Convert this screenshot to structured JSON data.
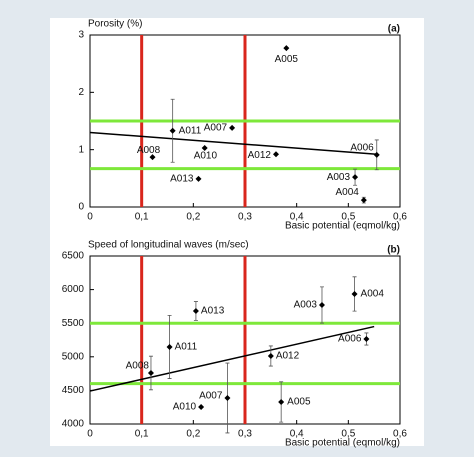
{
  "chart_data": [
    {
      "type": "scatter",
      "panel_label": "(a)",
      "y_label": "Porosity (%)",
      "x_label": "Basic potential (eqmol/kg)",
      "labels": [
        "A005",
        "A011",
        "A007",
        "A010",
        "A008",
        "A012",
        "A006",
        "A013",
        "A003",
        "A004"
      ],
      "x": [
        0.38,
        0.16,
        0.275,
        0.222,
        0.121,
        0.36,
        0.555,
        0.21,
        0.513,
        0.53
      ],
      "y": [
        2.77,
        1.33,
        1.38,
        1.03,
        0.87,
        0.92,
        0.91,
        0.49,
        0.52,
        0.12
      ],
      "errors": [
        null,
        0.55,
        null,
        null,
        null,
        null,
        0.26,
        null,
        0.14,
        0.05
      ],
      "color": "#000000",
      "trendline": {
        "x": [
          0,
          0.555
        ],
        "y": [
          1.3,
          0.92
        ],
        "color": "#000000"
      },
      "vlines": {
        "values": [
          0.1,
          0.3
        ],
        "color": "#d9261c"
      },
      "hlines": {
        "values": [
          1.5,
          0.67
        ],
        "color": "#7ee83a"
      },
      "xlim": [
        0,
        0.6
      ],
      "ylim": [
        0,
        3
      ],
      "xticks": [
        0,
        {
          "value": 0.1,
          "label": "0,1"
        },
        {
          "value": 0.2,
          "label": "0,2"
        },
        {
          "value": 0.3,
          "label": "0,3"
        },
        {
          "value": 0.4,
          "label": "0,4"
        },
        {
          "value": 0.5,
          "label": "0,5"
        },
        {
          "value": 0.6,
          "label": "0,6"
        }
      ],
      "yticks": [
        0,
        1,
        2,
        3
      ],
      "grid": false
    },
    {
      "type": "scatter",
      "panel_label": "(b)",
      "y_label": "Speed of longitudinal waves (m/sec)",
      "x_label": "Basic potential (eqmol/kg)",
      "labels": [
        "A005",
        "A011",
        "A007",
        "A010",
        "A008",
        "A012",
        "A006",
        "A013",
        "A003",
        "A004"
      ],
      "x": [
        0.37,
        0.154,
        0.266,
        0.215,
        0.118,
        0.35,
        0.535,
        0.205,
        0.449,
        0.512
      ],
      "y": [
        4328,
        5146,
        4387,
        4253,
        4759,
        5012,
        5265,
        5682,
        5771,
        5935
      ],
      "errors": [
        300,
        470,
        520,
        null,
        250,
        150,
        90,
        140,
        270,
        255
      ],
      "color": "#000000",
      "trendline": {
        "x": [
          0,
          0.55
        ],
        "y": [
          4490,
          5450
        ],
        "color": "#000000"
      },
      "vlines": {
        "values": [
          0.1,
          0.3
        ],
        "color": "#d9261c"
      },
      "hlines": {
        "values": [
          5500,
          4600
        ],
        "color": "#7ee83a"
      },
      "xlim": [
        0,
        0.6
      ],
      "ylim": [
        4000,
        6500
      ],
      "xticks": [
        0,
        {
          "value": 0.1,
          "label": "0,1"
        },
        {
          "value": 0.2,
          "label": "0,2"
        },
        {
          "value": 0.3,
          "label": "0,3"
        },
        {
          "value": 0.4,
          "label": "0,4"
        },
        {
          "value": 0.5,
          "label": "0,5"
        },
        {
          "value": 0.6,
          "label": "0,6"
        }
      ],
      "yticks": [
        4000,
        4500,
        5000,
        5500,
        6000,
        6500
      ],
      "grid": false
    }
  ]
}
